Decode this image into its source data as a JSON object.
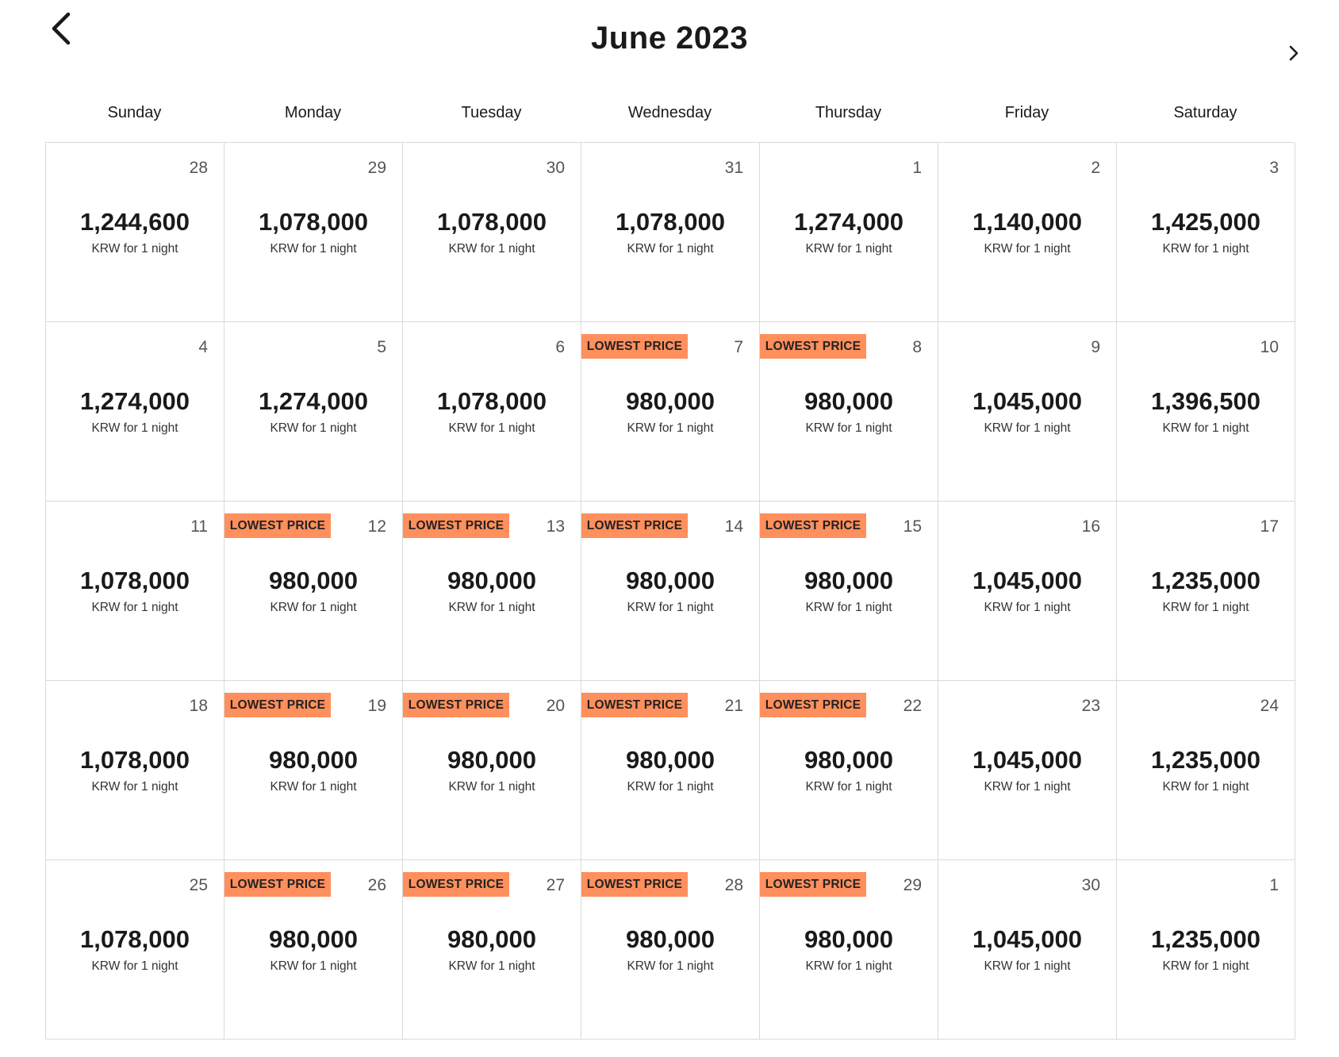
{
  "header": {
    "title": "June 2023",
    "prev_icon": "chevron-left-icon",
    "next_icon": "chevron-right-icon"
  },
  "weekdays": [
    "Sunday",
    "Monday",
    "Tuesday",
    "Wednesday",
    "Thursday",
    "Friday",
    "Saturday"
  ],
  "badge_color": "#ff8f5c",
  "days": [
    {
      "day": "28",
      "price": "1,244,600",
      "note": "KRW for 1 night",
      "badge": ""
    },
    {
      "day": "29",
      "price": "1,078,000",
      "note": "KRW for 1 night",
      "badge": ""
    },
    {
      "day": "30",
      "price": "1,078,000",
      "note": "KRW for 1 night",
      "badge": ""
    },
    {
      "day": "31",
      "price": "1,078,000",
      "note": "KRW for 1 night",
      "badge": ""
    },
    {
      "day": "1",
      "price": "1,274,000",
      "note": "KRW for 1 night",
      "badge": ""
    },
    {
      "day": "2",
      "price": "1,140,000",
      "note": "KRW for 1 night",
      "badge": ""
    },
    {
      "day": "3",
      "price": "1,425,000",
      "note": "KRW for 1 night",
      "badge": ""
    },
    {
      "day": "4",
      "price": "1,274,000",
      "note": "KRW for 1 night",
      "badge": ""
    },
    {
      "day": "5",
      "price": "1,274,000",
      "note": "KRW for 1 night",
      "badge": ""
    },
    {
      "day": "6",
      "price": "1,078,000",
      "note": "KRW for 1 night",
      "badge": ""
    },
    {
      "day": "7",
      "price": "980,000",
      "note": "KRW for 1 night",
      "badge": "LOWEST PRICE"
    },
    {
      "day": "8",
      "price": "980,000",
      "note": "KRW for 1 night",
      "badge": "LOWEST PRICE"
    },
    {
      "day": "9",
      "price": "1,045,000",
      "note": "KRW for 1 night",
      "badge": ""
    },
    {
      "day": "10",
      "price": "1,396,500",
      "note": "KRW for 1 night",
      "badge": ""
    },
    {
      "day": "11",
      "price": "1,078,000",
      "note": "KRW for 1 night",
      "badge": ""
    },
    {
      "day": "12",
      "price": "980,000",
      "note": "KRW for 1 night",
      "badge": "LOWEST PRICE"
    },
    {
      "day": "13",
      "price": "980,000",
      "note": "KRW for 1 night",
      "badge": "LOWEST PRICE"
    },
    {
      "day": "14",
      "price": "980,000",
      "note": "KRW for 1 night",
      "badge": "LOWEST PRICE"
    },
    {
      "day": "15",
      "price": "980,000",
      "note": "KRW for 1 night",
      "badge": "LOWEST PRICE"
    },
    {
      "day": "16",
      "price": "1,045,000",
      "note": "KRW for 1 night",
      "badge": ""
    },
    {
      "day": "17",
      "price": "1,235,000",
      "note": "KRW for 1 night",
      "badge": ""
    },
    {
      "day": "18",
      "price": "1,078,000",
      "note": "KRW for 1 night",
      "badge": ""
    },
    {
      "day": "19",
      "price": "980,000",
      "note": "KRW for 1 night",
      "badge": "LOWEST PRICE"
    },
    {
      "day": "20",
      "price": "980,000",
      "note": "KRW for 1 night",
      "badge": "LOWEST PRICE"
    },
    {
      "day": "21",
      "price": "980,000",
      "note": "KRW for 1 night",
      "badge": "LOWEST PRICE"
    },
    {
      "day": "22",
      "price": "980,000",
      "note": "KRW for 1 night",
      "badge": "LOWEST PRICE"
    },
    {
      "day": "23",
      "price": "1,045,000",
      "note": "KRW for 1 night",
      "badge": ""
    },
    {
      "day": "24",
      "price": "1,235,000",
      "note": "KRW for 1 night",
      "badge": ""
    },
    {
      "day": "25",
      "price": "1,078,000",
      "note": "KRW for 1 night",
      "badge": ""
    },
    {
      "day": "26",
      "price": "980,000",
      "note": "KRW for 1 night",
      "badge": "LOWEST PRICE"
    },
    {
      "day": "27",
      "price": "980,000",
      "note": "KRW for 1 night",
      "badge": "LOWEST PRICE"
    },
    {
      "day": "28",
      "price": "980,000",
      "note": "KRW for 1 night",
      "badge": "LOWEST PRICE"
    },
    {
      "day": "29",
      "price": "980,000",
      "note": "KRW for 1 night",
      "badge": "LOWEST PRICE"
    },
    {
      "day": "30",
      "price": "1,045,000",
      "note": "KRW for 1 night",
      "badge": ""
    },
    {
      "day": "1",
      "price": "1,235,000",
      "note": "KRW for 1 night",
      "badge": ""
    }
  ]
}
